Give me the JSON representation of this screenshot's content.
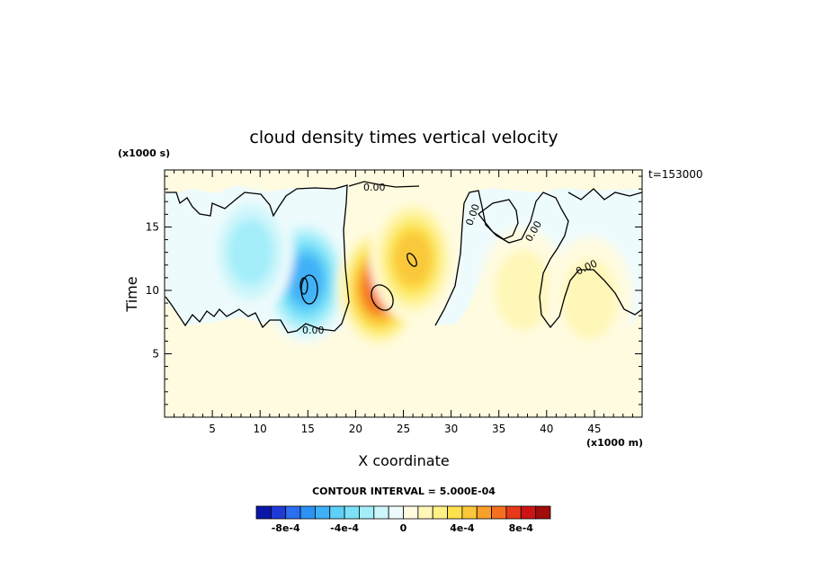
{
  "chart_data": {
    "type": "heatmap",
    "title": "cloud density times vertical velocity",
    "xlabel": "X coordinate",
    "ylabel": "Time",
    "x_unit": "(x1000 m)",
    "y_unit": "(x1000 s)",
    "time_stamp": "t=153000",
    "xlim": [
      0,
      50
    ],
    "ylim": [
      0,
      19.5
    ],
    "x_ticks": [
      5,
      10,
      15,
      20,
      25,
      30,
      35,
      40,
      45
    ],
    "y_ticks": [
      5,
      10,
      15
    ],
    "contour_interval": "CONTOUR INTERVAL = 5.000E-04",
    "contour_labels": [
      "0.00",
      "0.00",
      "0.00",
      "0.00",
      "0.00"
    ],
    "colorbar": {
      "levels": [
        -0.0009,
        -0.0008,
        -0.0007,
        -0.0006,
        -0.0005,
        -0.0004,
        -0.0003,
        -0.0002,
        -0.0001,
        0,
        0.0001,
        0.0002,
        0.0003,
        0.0004,
        0.0005,
        0.0006,
        0.0007,
        0.0008,
        0.0009
      ],
      "colors": [
        "#0b17a8",
        "#1f3ad6",
        "#2b6ef0",
        "#2c93f5",
        "#3fb1f7",
        "#5fd0f8",
        "#7be2f8",
        "#a3eef9",
        "#cdf6fb",
        "#eefbfd",
        "#fffbe0",
        "#fff7b8",
        "#fdf085",
        "#fde14e",
        "#fac83a",
        "#f8a12a",
        "#f4701f",
        "#e8391a",
        "#cc1414",
        "#a00b0b"
      ],
      "tick_labels": [
        "-8e-4",
        "-4e-4",
        "0",
        "4e-4",
        "8e-4"
      ],
      "tick_values": [
        -0.0008,
        -0.0004,
        0,
        0.0004,
        0.0008
      ]
    },
    "background_value": 0,
    "features": [
      {
        "kind": "negative",
        "x": 14.8,
        "y": 10.8,
        "peak": -0.00055
      },
      {
        "kind": "negative",
        "x": 9,
        "y": 13,
        "peak": -0.00025
      },
      {
        "kind": "positive",
        "x": 22.5,
        "y": 10.2,
        "peak": 0.00068
      },
      {
        "kind": "positive",
        "x": 26,
        "y": 12.5,
        "peak": 0.0005
      },
      {
        "kind": "positive",
        "x": 37.5,
        "y": 10,
        "peak": 0.00022
      },
      {
        "kind": "positive",
        "x": 44.5,
        "y": 9.3,
        "peak": 0.00018
      }
    ]
  }
}
